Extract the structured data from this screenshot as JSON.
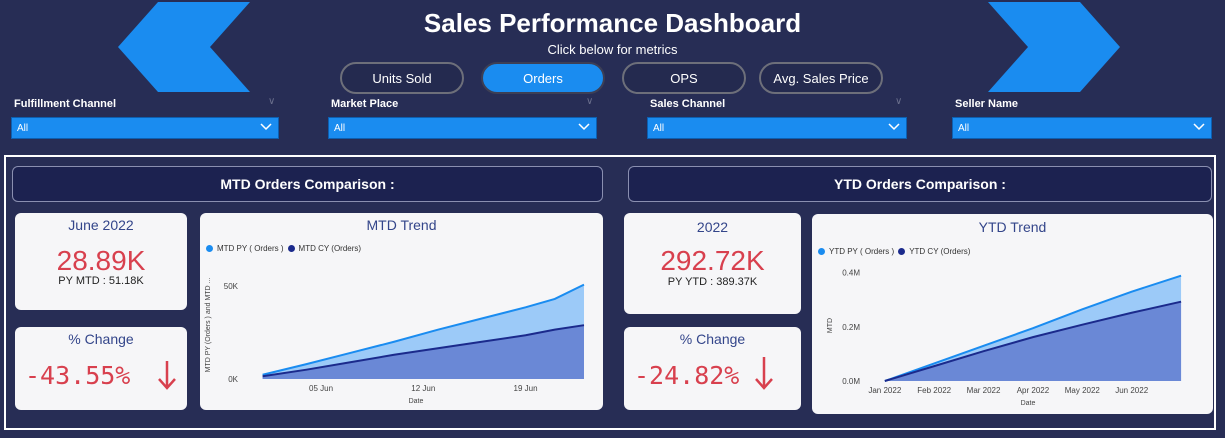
{
  "header": {
    "title": "Sales Performance Dashboard",
    "subtitle": "Click below for metrics"
  },
  "metrics": [
    {
      "label": "Units Sold",
      "active": false
    },
    {
      "label": "Orders",
      "active": true
    },
    {
      "label": "OPS",
      "active": false
    },
    {
      "label": "Avg. Sales Price",
      "active": false
    }
  ],
  "filters": [
    {
      "label": "Fulfillment Channel",
      "value": "All"
    },
    {
      "label": "Market Place",
      "value": "All"
    },
    {
      "label": "Sales Channel",
      "value": "All"
    },
    {
      "label": "Seller Name",
      "value": "All"
    }
  ],
  "mtd": {
    "header": "MTD Orders Comparison :",
    "period": "June 2022",
    "value": "28.89K",
    "py_text": "PY MTD : 51.18K",
    "change_title": "% Change",
    "change_value": "-43.55%"
  },
  "ytd": {
    "header": "YTD Orders Comparison :",
    "period": "2022",
    "value": "292.72K",
    "py_text": "PY YTD : 389.37K",
    "change_title": "% Change",
    "change_value": "-24.82%"
  },
  "colors": {
    "py": "#1a8cf0",
    "cy": "#1b2a8c",
    "negative": "#d8404e"
  },
  "chart_data": [
    {
      "type": "area",
      "title": "MTD Trend",
      "legend": [
        "MTD PY ( Orders )",
        "MTD CY (Orders)"
      ],
      "xlabel": "Date",
      "ylabel": "MTD PY (Orders ) and MTD ...",
      "x_ticks": [
        {
          "day": 5,
          "label": "05 Jun"
        },
        {
          "day": 12,
          "label": "12 Jun"
        },
        {
          "day": 19,
          "label": "19 Jun"
        }
      ],
      "y_ticks": [
        {
          "value": 0,
          "label": "0K"
        },
        {
          "value": 50000,
          "label": "50K"
        }
      ],
      "xlim": [
        0,
        23
      ],
      "ylim": [
        0,
        58000
      ],
      "series": [
        {
          "name": "MTD PY ( Orders )",
          "x": [
            1,
            4,
            7,
            10,
            13,
            16,
            19,
            21,
            23
          ],
          "values": [
            2300,
            8000,
            14000,
            20000,
            26500,
            32500,
            38500,
            43000,
            50700
          ]
        },
        {
          "name": "MTD CY (Orders)",
          "x": [
            1,
            4,
            7,
            10,
            13,
            16,
            19,
            21,
            23
          ],
          "values": [
            1500,
            5000,
            9000,
            13000,
            16500,
            20000,
            23500,
            26500,
            28900
          ]
        }
      ]
    },
    {
      "type": "area",
      "title": "YTD Trend",
      "legend": [
        "YTD PY ( Orders )",
        "YTD CY (Orders)"
      ],
      "xlabel": "Date",
      "ylabel": "MTD",
      "x_ticks": [
        {
          "month": 0,
          "label": "Jan 2022"
        },
        {
          "month": 1,
          "label": "Feb 2022"
        },
        {
          "month": 2,
          "label": "Mar 2022"
        },
        {
          "month": 3,
          "label": "Apr 2022"
        },
        {
          "month": 4,
          "label": "May 2022"
        },
        {
          "month": 5,
          "label": "Jun 2022"
        }
      ],
      "y_ticks": [
        {
          "value": 0,
          "label": "0.0M"
        },
        {
          "value": 200000,
          "label": "0.2M"
        },
        {
          "value": 400000,
          "label": "0.4M"
        }
      ],
      "xlim": [
        -0.3,
        6.1
      ],
      "ylim": [
        0,
        410000
      ],
      "series": [
        {
          "name": "YTD PY ( Orders )",
          "x": [
            0,
            1,
            2,
            3,
            4,
            5,
            6
          ],
          "values": [
            0,
            65000,
            130000,
            195000,
            265000,
            330000,
            389000
          ]
        },
        {
          "name": "YTD CY (Orders)",
          "x": [
            0,
            1,
            2,
            3,
            4,
            5,
            6
          ],
          "values": [
            0,
            55000,
            110000,
            162000,
            208000,
            252000,
            293000
          ]
        }
      ]
    }
  ]
}
